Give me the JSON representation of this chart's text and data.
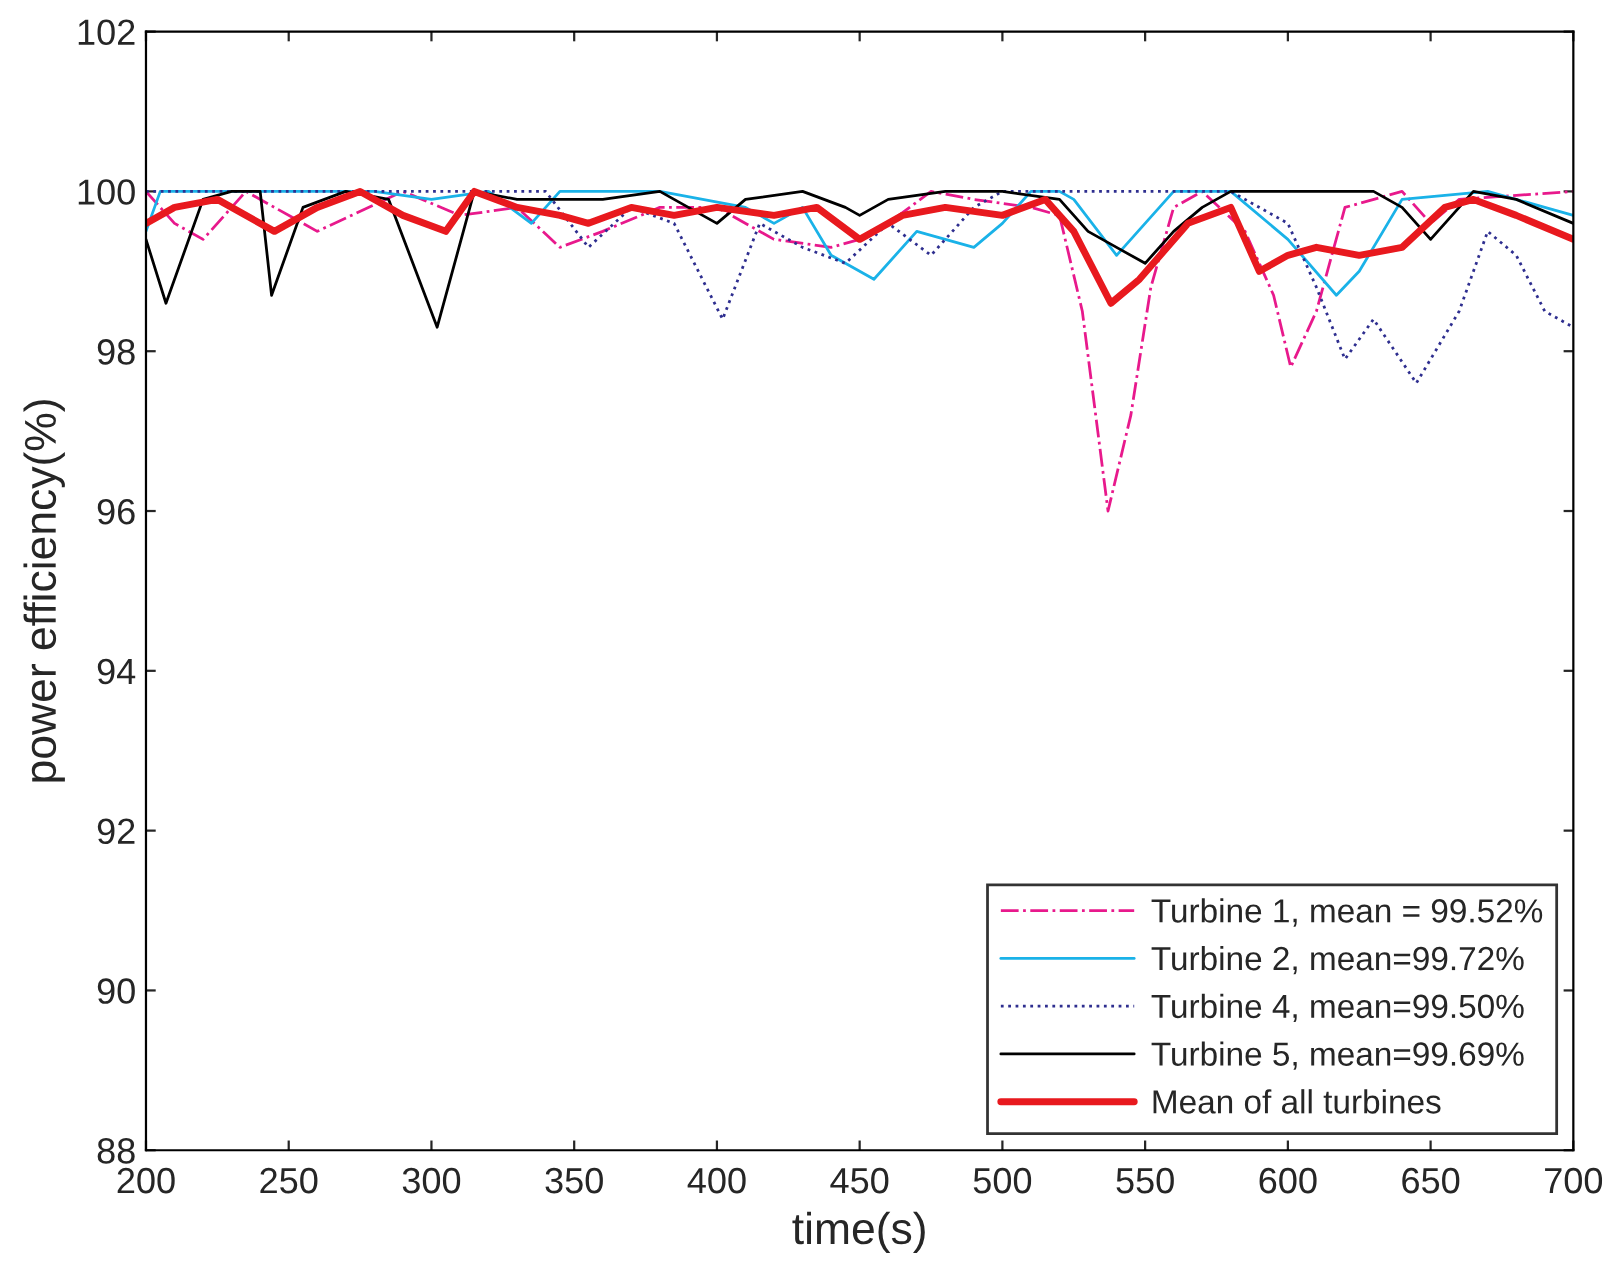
{
  "chart_data": {
    "type": "line",
    "xlabel": "time(s)",
    "ylabel": "power efficiency(%)",
    "xlim": [
      200,
      700
    ],
    "ylim": [
      88,
      102
    ],
    "xticks": [
      200,
      250,
      300,
      350,
      400,
      450,
      500,
      550,
      600,
      650,
      700
    ],
    "yticks": [
      88,
      90,
      92,
      94,
      96,
      98,
      100,
      102
    ],
    "grid": false,
    "legend": "bottom right",
    "marker": "none",
    "series": [
      {
        "name": "Turbine 1, mean = 99.52%",
        "color": "#e8198c",
        "line_style": "dashdot",
        "x": [
          200,
          210,
          220,
          235,
          260,
          290,
          310,
          330,
          345,
          360,
          380,
          400,
          420,
          440,
          450,
          460,
          475,
          490,
          510,
          520,
          528,
          537,
          545,
          552,
          560,
          570,
          585,
          595,
          601,
          610,
          620,
          640,
          650,
          660,
          700
        ],
        "values": [
          100,
          99.6,
          99.4,
          100,
          99.5,
          100,
          99.7,
          99.8,
          99.3,
          99.5,
          99.8,
          99.8,
          99.4,
          99.3,
          99.4,
          99.6,
          100,
          99.9,
          99.8,
          99.7,
          98.5,
          96.0,
          97.2,
          98.8,
          99.8,
          100,
          99.5,
          98.7,
          97.8,
          98.5,
          99.8,
          100,
          99.6,
          99.9,
          100
        ]
      },
      {
        "name": "Turbine 2, mean=99.72%",
        "color": "#1ab2e8",
        "line_style": "solid",
        "x": [
          200,
          205,
          280,
          300,
          320,
          335,
          345,
          380,
          410,
          420,
          430,
          440,
          455,
          470,
          490,
          500,
          510,
          520,
          525,
          540,
          550,
          560,
          580,
          600,
          617,
          625,
          640,
          670,
          690,
          700
        ],
        "values": [
          99.5,
          100,
          100,
          99.9,
          100,
          99.6,
          100,
          100,
          99.8,
          99.6,
          99.8,
          99.2,
          98.9,
          99.5,
          99.3,
          99.6,
          100,
          100,
          99.9,
          99.2,
          99.6,
          100,
          100,
          99.4,
          98.7,
          99.0,
          99.9,
          100,
          99.8,
          99.7
        ]
      },
      {
        "name": "Turbine 4, mean=99.50%",
        "color": "#2e2e8f",
        "line_style": "dotted",
        "x": [
          200,
          340,
          355,
          370,
          385,
          402,
          415,
          430,
          445,
          460,
          475,
          490,
          500,
          580,
          600,
          610,
          620,
          630,
          645,
          660,
          670,
          680,
          690,
          700
        ],
        "values": [
          100,
          100,
          99.3,
          99.8,
          99.6,
          98.4,
          99.6,
          99.3,
          99.1,
          99.6,
          99.2,
          99.8,
          100,
          100,
          99.6,
          98.8,
          97.9,
          98.4,
          97.6,
          98.5,
          99.5,
          99.2,
          98.5,
          98.3
        ]
      },
      {
        "name": "Turbine 5, mean=99.69%",
        "color": "#000000",
        "line_style": "solid",
        "x": [
          200,
          207,
          220,
          230,
          240,
          244,
          255,
          270,
          285,
          302,
          315,
          330,
          360,
          380,
          395,
          400,
          410,
          430,
          445,
          450,
          460,
          480,
          500,
          520,
          530,
          540,
          550,
          560,
          570,
          580,
          630,
          640,
          650,
          660,
          665,
          680,
          700
        ],
        "values": [
          99.4,
          98.6,
          99.9,
          100,
          100,
          98.7,
          99.8,
          100,
          99.9,
          98.3,
          100,
          99.9,
          99.9,
          100,
          99.7,
          99.6,
          99.9,
          100,
          99.8,
          99.7,
          99.9,
          100,
          100,
          99.9,
          99.5,
          99.3,
          99.1,
          99.5,
          99.8,
          100,
          100,
          99.8,
          99.4,
          99.8,
          100,
          99.9,
          99.6
        ]
      },
      {
        "name": "Mean of all turbines",
        "color": "#e8191e",
        "line_style": "solid",
        "x": [
          200,
          210,
          225,
          245,
          260,
          275,
          290,
          305,
          315,
          330,
          345,
          355,
          370,
          385,
          400,
          420,
          435,
          450,
          465,
          480,
          500,
          515,
          525,
          538,
          548,
          565,
          580,
          590,
          600,
          610,
          625,
          640,
          655,
          665,
          680,
          700
        ],
        "values": [
          99.6,
          99.8,
          99.9,
          99.5,
          99.8,
          100,
          99.7,
          99.5,
          100,
          99.8,
          99.7,
          99.6,
          99.8,
          99.7,
          99.8,
          99.7,
          99.8,
          99.4,
          99.7,
          99.8,
          99.7,
          99.9,
          99.5,
          98.6,
          98.9,
          99.6,
          99.8,
          99.0,
          99.2,
          99.3,
          99.2,
          99.3,
          99.8,
          99.9,
          99.7,
          99.4
        ]
      }
    ]
  }
}
